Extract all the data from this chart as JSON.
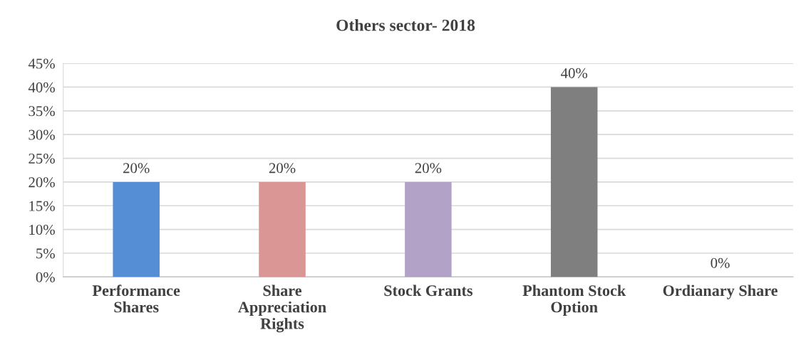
{
  "chart_data": {
    "type": "bar",
    "title": "Others sector- 2018",
    "categories": [
      "Performance Shares",
      "Share Appreciation Rights",
      "Stock Grants",
      "Phantom Stock Option",
      "Ordianary Share"
    ],
    "values": [
      20,
      20,
      20,
      40,
      0
    ],
    "colors": [
      "#558ed5",
      "#d99694",
      "#b3a2c7",
      "#7f7f7f",
      "#f79646"
    ],
    "value_labels": [
      "20%",
      "20%",
      "20%",
      "40%",
      "0%"
    ],
    "ylim": [
      0,
      45
    ],
    "yticks": [
      {
        "value": 0,
        "label": "0%"
      },
      {
        "value": 5,
        "label": "5%"
      },
      {
        "value": 10,
        "label": "10%"
      },
      {
        "value": 15,
        "label": "15%"
      },
      {
        "value": 20,
        "label": "20%"
      },
      {
        "value": 25,
        "label": "25%"
      },
      {
        "value": 30,
        "label": "30%"
      },
      {
        "value": 35,
        "label": "35%"
      },
      {
        "value": 40,
        "label": "40%"
      },
      {
        "value": 45,
        "label": "45%"
      }
    ],
    "grid": "y",
    "legend": false
  }
}
